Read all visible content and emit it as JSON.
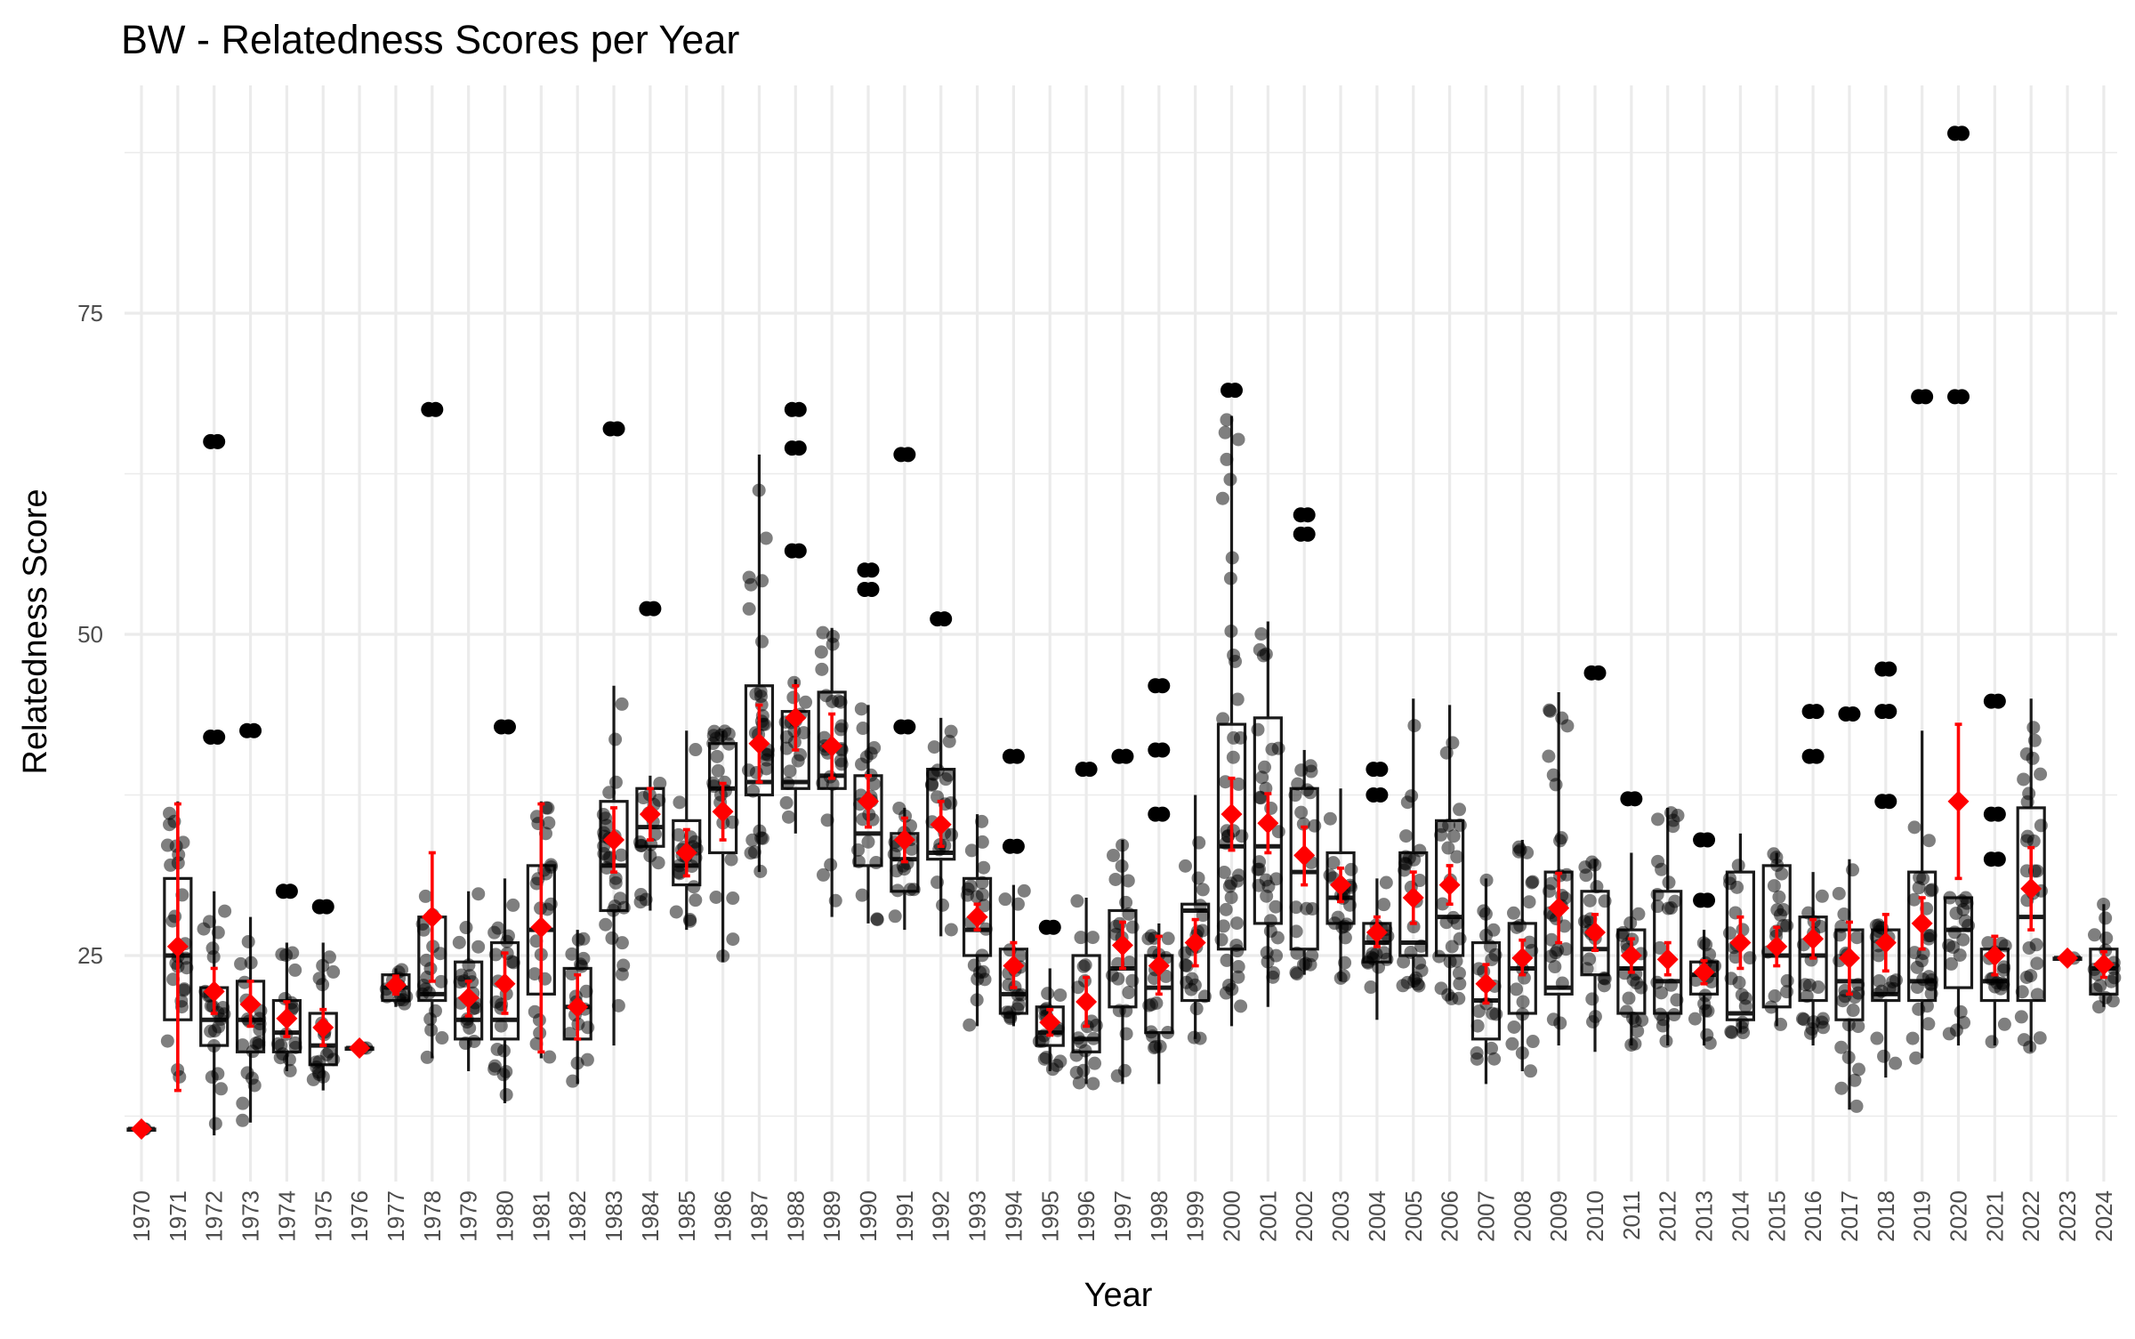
{
  "chart_data": {
    "type": "boxplot",
    "title": "BW - Relatedness Scores per Year",
    "xlabel": "Year",
    "ylabel": "Relatedness Score",
    "ylim": [
      8,
      93
    ],
    "yticks": [
      25,
      50,
      75
    ],
    "grid": true,
    "legend": "none",
    "colors": {
      "box": "#1a1a1a",
      "points": "#000000",
      "mean": "#ff0000",
      "grid": "#ebebeb"
    },
    "categories": [
      "1970",
      "1971",
      "1972",
      "1973",
      "1974",
      "1975",
      "1976",
      "1977",
      "1978",
      "1979",
      "1980",
      "1981",
      "1982",
      "1983",
      "1984",
      "1985",
      "1986",
      "1987",
      "1988",
      "1989",
      "1990",
      "1991",
      "1992",
      "1993",
      "1994",
      "1995",
      "1996",
      "1997",
      "1998",
      "1999",
      "2000",
      "2001",
      "2002",
      "2003",
      "2004",
      "2005",
      "2006",
      "2007",
      "2008",
      "2009",
      "2010",
      "2011",
      "2012",
      "2013",
      "2014",
      "2015",
      "2016",
      "2017",
      "2018",
      "2019",
      "2020",
      "2021",
      "2022",
      "2023",
      "2024"
    ],
    "boxes": [
      {
        "year": "1970",
        "q1": 11.5,
        "median": 11.5,
        "q3": 11.5,
        "lo": 11.5,
        "hi": 11.5,
        "mean": 11.5,
        "ci": [
          11.5,
          11.5
        ],
        "outliers": []
      },
      {
        "year": "1971",
        "q1": 20,
        "median": 25,
        "q3": 31,
        "lo": 14.5,
        "hi": 37,
        "mean": 25.7,
        "ci": [
          14.5,
          36.8
        ],
        "outliers": []
      },
      {
        "year": "1972",
        "q1": 18,
        "median": 20,
        "q3": 22.5,
        "lo": 11,
        "hi": 30,
        "mean": 22.2,
        "ci": [
          20.5,
          24
        ],
        "outliers": [
          42,
          65
        ]
      },
      {
        "year": "1973",
        "q1": 17.5,
        "median": 20,
        "q3": 23,
        "lo": 12,
        "hi": 28,
        "mean": 21.2,
        "ci": [
          19.5,
          23
        ],
        "outliers": [
          42.5
        ]
      },
      {
        "year": "1974",
        "q1": 17.5,
        "median": 19,
        "q3": 21.5,
        "lo": 16,
        "hi": 26,
        "mean": 20.1,
        "ci": [
          18.7,
          21.4
        ],
        "outliers": [
          30
        ]
      },
      {
        "year": "1975",
        "q1": 16.5,
        "median": 18,
        "q3": 20.5,
        "lo": 14.5,
        "hi": 26,
        "mean": 19.4,
        "ci": [
          18,
          20.8
        ],
        "outliers": [
          28.8
        ]
      },
      {
        "year": "1976",
        "q1": 17.8,
        "median": 17.8,
        "q3": 17.8,
        "lo": 17.8,
        "hi": 17.8,
        "mean": 17.8,
        "ci": [
          17.8,
          17.8
        ],
        "outliers": []
      },
      {
        "year": "1977",
        "q1": 21.5,
        "median": 22.5,
        "q3": 23.5,
        "lo": 21,
        "hi": 24,
        "mean": 22.7,
        "ci": [
          22,
          23.4
        ],
        "outliers": []
      },
      {
        "year": "1978",
        "q1": 21.5,
        "median": 22,
        "q3": 28,
        "lo": 17,
        "hi": 30,
        "mean": 28,
        "ci": [
          23,
          33
        ],
        "outliers": [
          67.5
        ]
      },
      {
        "year": "1979",
        "q1": 18.5,
        "median": 20,
        "q3": 24.5,
        "lo": 16,
        "hi": 30,
        "mean": 21.7,
        "ci": [
          20.3,
          23
        ],
        "outliers": []
      },
      {
        "year": "1980",
        "q1": 18.5,
        "median": 20,
        "q3": 26,
        "lo": 13.5,
        "hi": 31,
        "mean": 22.8,
        "ci": [
          20.5,
          25.2
        ],
        "outliers": [
          42.8
        ]
      },
      {
        "year": "1981",
        "q1": 22,
        "median": 27,
        "q3": 32,
        "lo": 17,
        "hi": 37,
        "mean": 27.2,
        "ci": [
          17.5,
          36.8
        ],
        "outliers": []
      },
      {
        "year": "1982",
        "q1": 18.5,
        "median": 21,
        "q3": 24,
        "lo": 15,
        "hi": 27,
        "mean": 21,
        "ci": [
          18.5,
          23.5
        ],
        "outliers": []
      },
      {
        "year": "1983",
        "q1": 28.5,
        "median": 32,
        "q3": 37,
        "lo": 18,
        "hi": 46,
        "mean": 34,
        "ci": [
          31.5,
          36.5
        ],
        "outliers": [
          66
        ]
      },
      {
        "year": "1984",
        "q1": 33.5,
        "median": 35,
        "q3": 38,
        "lo": 28.5,
        "hi": 39,
        "mean": 36,
        "ci": [
          34,
          38
        ],
        "outliers": [
          52
        ]
      },
      {
        "year": "1985",
        "q1": 30.5,
        "median": 32,
        "q3": 35.5,
        "lo": 27,
        "hi": 42.5,
        "mean": 33,
        "ci": [
          31.2,
          34.8
        ],
        "outliers": []
      },
      {
        "year": "1986",
        "q1": 33,
        "median": 38,
        "q3": 41.5,
        "lo": 24.5,
        "hi": 42.5,
        "mean": 36.2,
        "ci": [
          34,
          38.4
        ],
        "outliers": []
      },
      {
        "year": "1987",
        "q1": 37.5,
        "median": 38.5,
        "q3": 46,
        "lo": 31.5,
        "hi": 64,
        "mean": 41.5,
        "ci": [
          38.5,
          44.5
        ],
        "outliers": []
      },
      {
        "year": "1988",
        "q1": 38,
        "median": 38.5,
        "q3": 44,
        "lo": 34.5,
        "hi": 46.5,
        "mean": 43.5,
        "ci": [
          41,
          46
        ],
        "outliers": [
          56.5,
          64.5,
          67.5
        ]
      },
      {
        "year": "1989",
        "q1": 38,
        "median": 39,
        "q3": 45.5,
        "lo": 28,
        "hi": 50.5,
        "mean": 41.3,
        "ci": [
          38.8,
          43.8
        ],
        "outliers": []
      },
      {
        "year": "1990",
        "q1": 32,
        "median": 34.5,
        "q3": 39,
        "lo": 27.5,
        "hi": 44.5,
        "mean": 37,
        "ci": [
          35,
          39
        ],
        "outliers": [
          53.5,
          55
        ]
      },
      {
        "year": "1991",
        "q1": 30,
        "median": 32.5,
        "q3": 34.5,
        "lo": 27,
        "hi": 36.5,
        "mean": 34,
        "ci": [
          32.3,
          35.7
        ],
        "outliers": [
          42.8,
          64
        ]
      },
      {
        "year": "1992",
        "q1": 32.5,
        "median": 33,
        "q3": 39.5,
        "lo": 26.5,
        "hi": 43.5,
        "mean": 35.2,
        "ci": [
          33.5,
          37
        ],
        "outliers": [
          51.2
        ]
      },
      {
        "year": "1993",
        "q1": 25,
        "median": 27,
        "q3": 31,
        "lo": 19.5,
        "hi": 36,
        "mean": 28,
        "ci": [
          27,
          29
        ],
        "outliers": []
      },
      {
        "year": "1994",
        "q1": 20.5,
        "median": 22,
        "q3": 25.5,
        "lo": 19.5,
        "hi": 30.5,
        "mean": 24.2,
        "ci": [
          22.5,
          26
        ],
        "outliers": [
          33.5,
          40.5
        ]
      },
      {
        "year": "1995",
        "q1": 18,
        "median": 19,
        "q3": 21,
        "lo": 16,
        "hi": 24,
        "mean": 19.8,
        "ci": [
          18.8,
          20.8
        ],
        "outliers": [
          27.2
        ]
      },
      {
        "year": "1996",
        "q1": 17.5,
        "median": 18.5,
        "q3": 25,
        "lo": 15,
        "hi": 29.5,
        "mean": 21.4,
        "ci": [
          19.5,
          23.3
        ],
        "outliers": [
          39.5
        ]
      },
      {
        "year": "1997",
        "q1": 21,
        "median": 24,
        "q3": 28.5,
        "lo": 15,
        "hi": 34,
        "mean": 25.8,
        "ci": [
          24,
          27.6
        ],
        "outliers": [
          40.5
        ]
      },
      {
        "year": "1998",
        "q1": 19,
        "median": 22.5,
        "q3": 25,
        "lo": 15,
        "hi": 27.5,
        "mean": 24.2,
        "ci": [
          22,
          26.5
        ],
        "outliers": [
          36,
          41,
          46
        ]
      },
      {
        "year": "1999",
        "q1": 21.5,
        "median": 28.5,
        "q3": 29,
        "lo": 18.5,
        "hi": 37.5,
        "mean": 26,
        "ci": [
          24.2,
          27.8
        ],
        "outliers": []
      },
      {
        "year": "2000",
        "q1": 25.5,
        "median": 33.5,
        "q3": 43,
        "lo": 19.5,
        "hi": 67,
        "mean": 36,
        "ci": [
          33.2,
          38.8
        ],
        "outliers": [
          69
        ]
      },
      {
        "year": "2001",
        "q1": 27.5,
        "median": 33.5,
        "q3": 43.5,
        "lo": 21,
        "hi": 51,
        "mean": 35.3,
        "ci": [
          33,
          37.6
        ],
        "outliers": []
      },
      {
        "year": "2002",
        "q1": 25.5,
        "median": 31.5,
        "q3": 38,
        "lo": 23.5,
        "hi": 41,
        "mean": 32.8,
        "ci": [
          30.5,
          35
        ],
        "outliers": [
          57.8,
          59.3
        ]
      },
      {
        "year": "2003",
        "q1": 27.5,
        "median": 29.5,
        "q3": 33,
        "lo": 23,
        "hi": 38,
        "mean": 30.5,
        "ci": [
          29.2,
          31.8
        ],
        "outliers": []
      },
      {
        "year": "2004",
        "q1": 24.5,
        "median": 26,
        "q3": 27.5,
        "lo": 20,
        "hi": 31,
        "mean": 26.8,
        "ci": [
          25.7,
          28
        ],
        "outliers": [
          37.5,
          39.5
        ]
      },
      {
        "year": "2005",
        "q1": 25,
        "median": 26,
        "q3": 33,
        "lo": 22.5,
        "hi": 45,
        "mean": 29.5,
        "ci": [
          27.5,
          31.5
        ],
        "outliers": []
      },
      {
        "year": "2006",
        "q1": 25,
        "median": 28,
        "q3": 35.5,
        "lo": 21.5,
        "hi": 44.5,
        "mean": 30.5,
        "ci": [
          29,
          32
        ],
        "outliers": []
      },
      {
        "year": "2007",
        "q1": 18.5,
        "median": 21.5,
        "q3": 26,
        "lo": 15,
        "hi": 31,
        "mean": 22.8,
        "ci": [
          21.3,
          24.3
        ],
        "outliers": []
      },
      {
        "year": "2008",
        "q1": 20.5,
        "median": 24,
        "q3": 27.5,
        "lo": 16,
        "hi": 34,
        "mean": 24.8,
        "ci": [
          23.5,
          26.2
        ],
        "outliers": []
      },
      {
        "year": "2009",
        "q1": 22,
        "median": 22.5,
        "q3": 31.5,
        "lo": 18,
        "hi": 45.5,
        "mean": 28.7,
        "ci": [
          26,
          31.4
        ],
        "outliers": []
      },
      {
        "year": "2010",
        "q1": 23.5,
        "median": 25.5,
        "q3": 30,
        "lo": 17.5,
        "hi": 32.5,
        "mean": 26.8,
        "ci": [
          25.4,
          28.2
        ],
        "outliers": [
          47
        ]
      },
      {
        "year": "2011",
        "q1": 20.5,
        "median": 24,
        "q3": 27,
        "lo": 18,
        "hi": 33,
        "mean": 25,
        "ci": [
          23.7,
          26.3
        ],
        "outliers": [
          37.2
        ]
      },
      {
        "year": "2012",
        "q1": 20.5,
        "median": 23,
        "q3": 30,
        "lo": 18,
        "hi": 36.5,
        "mean": 24.7,
        "ci": [
          23.5,
          26
        ],
        "outliers": []
      },
      {
        "year": "2013",
        "q1": 22,
        "median": 23.5,
        "q3": 24.5,
        "lo": 18,
        "hi": 27,
        "mean": 23.7,
        "ci": [
          22.8,
          24.6
        ],
        "outliers": [
          29.3,
          34
        ]
      },
      {
        "year": "2014",
        "q1": 20,
        "median": 20.5,
        "q3": 31.5,
        "lo": 19,
        "hi": 34.5,
        "mean": 26,
        "ci": [
          24,
          28
        ],
        "outliers": []
      },
      {
        "year": "2015",
        "q1": 21,
        "median": 25,
        "q3": 32,
        "lo": 19.5,
        "hi": 33,
        "mean": 25.7,
        "ci": [
          24.2,
          27.2
        ],
        "outliers": []
      },
      {
        "year": "2016",
        "q1": 21.5,
        "median": 25,
        "q3": 28,
        "lo": 18,
        "hi": 31.5,
        "mean": 26.3,
        "ci": [
          24.8,
          27.8
        ],
        "outliers": [
          40.5,
          44
        ]
      },
      {
        "year": "2017",
        "q1": 20,
        "median": 23,
        "q3": 27,
        "lo": 13,
        "hi": 32.5,
        "mean": 24.8,
        "ci": [
          22,
          27.6
        ],
        "outliers": [
          43.8
        ]
      },
      {
        "year": "2018",
        "q1": 21.5,
        "median": 22,
        "q3": 27,
        "lo": 15.5,
        "hi": 28,
        "mean": 26,
        "ci": [
          23.8,
          28.2
        ],
        "outliers": [
          37,
          44,
          47.3
        ]
      },
      {
        "year": "2019",
        "q1": 21.5,
        "median": 23,
        "q3": 31.5,
        "lo": 17,
        "hi": 42.5,
        "mean": 27.5,
        "ci": [
          25.5,
          29.5
        ],
        "outliers": [
          68.5
        ]
      },
      {
        "year": "2020",
        "q1": 22.5,
        "median": 27,
        "q3": 29.5,
        "lo": 18,
        "hi": 29.5,
        "mean": 37,
        "ci": [
          31,
          43
        ],
        "outliers": [
          68.5,
          89
        ]
      },
      {
        "year": "2021",
        "q1": 21.5,
        "median": 23,
        "q3": 25.5,
        "lo": 18,
        "hi": 26,
        "mean": 25,
        "ci": [
          23.5,
          26.5
        ],
        "outliers": [
          32.5,
          36,
          44.8
        ]
      },
      {
        "year": "2022",
        "q1": 21.5,
        "median": 28,
        "q3": 36.5,
        "lo": 17.5,
        "hi": 45,
        "mean": 30.2,
        "ci": [
          27,
          33.4
        ],
        "outliers": []
      },
      {
        "year": "2023",
        "q1": 24.8,
        "median": 24.8,
        "q3": 24.8,
        "lo": 24.8,
        "hi": 24.8,
        "mean": 24.8,
        "ci": [
          24.8,
          24.8
        ],
        "outliers": []
      },
      {
        "year": "2024",
        "q1": 22,
        "median": 24,
        "q3": 25.5,
        "lo": 21,
        "hi": 29,
        "mean": 24.3,
        "ci": [
          23.3,
          25.3
        ],
        "outliers": []
      }
    ]
  }
}
